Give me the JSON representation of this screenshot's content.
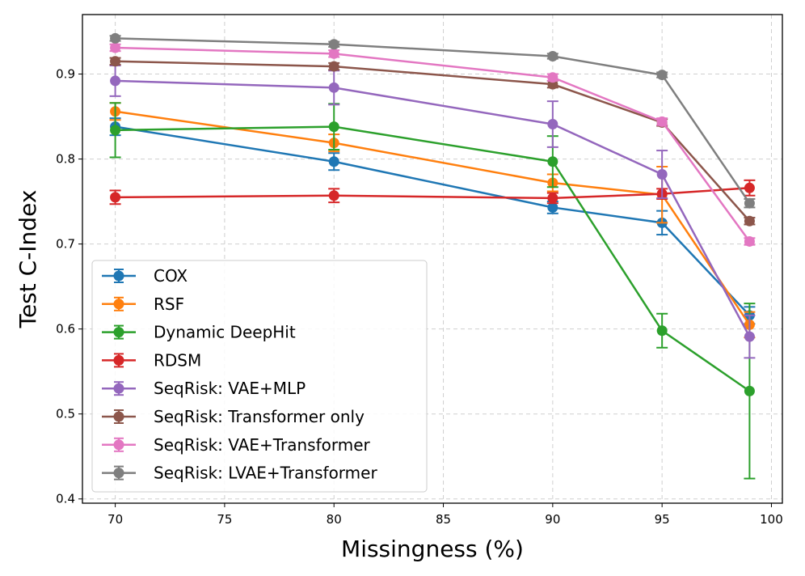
{
  "chart_data": {
    "type": "line",
    "title": "",
    "xlabel": "Missingness (%)",
    "ylabel": "Test C-Index",
    "xlim": [
      68.5,
      100.5
    ],
    "ylim": [
      0.395,
      0.97
    ],
    "xticks": [
      70,
      75,
      80,
      85,
      90,
      95,
      100
    ],
    "yticks": [
      0.4,
      0.5,
      0.6,
      0.7,
      0.8,
      0.9
    ],
    "grid": true,
    "legend_position": "lower-left",
    "x": [
      70,
      80,
      90,
      95,
      99
    ],
    "series": [
      {
        "name": "COX",
        "color": "#1f77b4",
        "values": [
          0.838,
          0.797,
          0.743,
          0.725,
          0.616
        ],
        "errors": [
          0.01,
          0.01,
          0.007,
          0.014,
          0.01
        ]
      },
      {
        "name": "RSF",
        "color": "#ff7f0e",
        "values": [
          0.856,
          0.819,
          0.772,
          0.758,
          0.605
        ],
        "errors": [
          0.01,
          0.01,
          0.01,
          0.033,
          0.015
        ]
      },
      {
        "name": "Dynamic DeepHit",
        "color": "#2ca02c",
        "values": [
          0.834,
          0.838,
          0.797,
          0.598,
          0.527
        ],
        "errors": [
          0.032,
          0.027,
          0.03,
          0.02,
          0.103
        ]
      },
      {
        "name": "RDSM",
        "color": "#d62728",
        "values": [
          0.755,
          0.757,
          0.754,
          0.759,
          0.766
        ],
        "errors": [
          0.008,
          0.008,
          0.006,
          0.006,
          0.009
        ]
      },
      {
        "name": "SeqRisk: VAE+MLP",
        "color": "#9467bd",
        "values": [
          0.892,
          0.884,
          0.841,
          0.782,
          0.591
        ],
        "errors": [
          0.018,
          0.02,
          0.027,
          0.028,
          0.025
        ]
      },
      {
        "name": "SeqRisk: Transformer only",
        "color": "#8c564b",
        "values": [
          0.915,
          0.909,
          0.888,
          0.843,
          0.727
        ],
        "errors": [
          0.004,
          0.004,
          0.004,
          0.004,
          0.004
        ]
      },
      {
        "name": "SeqRisk: VAE+Transformer",
        "color": "#e377c2",
        "values": [
          0.931,
          0.924,
          0.896,
          0.844,
          0.703
        ],
        "errors": [
          0.004,
          0.004,
          0.004,
          0.004,
          0.004
        ]
      },
      {
        "name": "SeqRisk: LVAE+Transformer",
        "color": "#7f7f7f",
        "values": [
          0.942,
          0.935,
          0.921,
          0.899,
          0.748
        ],
        "errors": [
          0.003,
          0.003,
          0.003,
          0.003,
          0.005
        ]
      }
    ]
  }
}
